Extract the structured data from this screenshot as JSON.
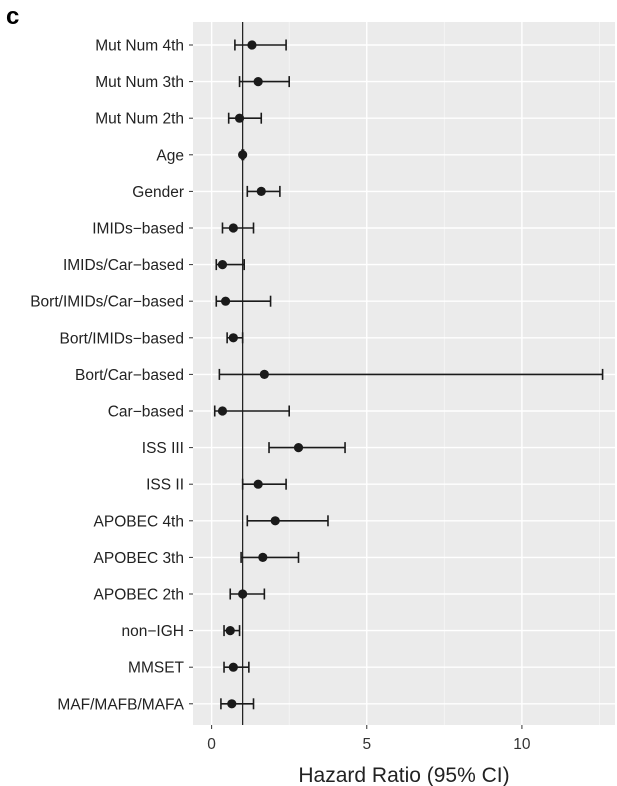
{
  "panel_label": "c",
  "chart_data": {
    "type": "forest",
    "title": "",
    "xlabel": "Hazard Ratio (95% CI)",
    "ylabel": "",
    "xlim": [
      -0.6,
      13.0
    ],
    "xticks": [
      0,
      5,
      10
    ],
    "reference_line": 1,
    "grid": true,
    "rows": [
      {
        "label": "Mut Num 4th",
        "hr": 1.3,
        "lo": 0.75,
        "hi": 2.4
      },
      {
        "label": "Mut Num 3th",
        "hr": 1.5,
        "lo": 0.9,
        "hi": 2.5
      },
      {
        "label": "Mut Num 2th",
        "hr": 0.9,
        "lo": 0.55,
        "hi": 1.6
      },
      {
        "label": "Age",
        "hr": 1.0,
        "lo": 0.98,
        "hi": 1.03
      },
      {
        "label": "Gender",
        "hr": 1.6,
        "lo": 1.15,
        "hi": 2.2
      },
      {
        "label": "IMIDs−based",
        "hr": 0.7,
        "lo": 0.35,
        "hi": 1.35
      },
      {
        "label": "IMIDs/Car−based",
        "hr": 0.35,
        "lo": 0.15,
        "hi": 1.05
      },
      {
        "label": "Bort/IMIDs/Car−based",
        "hr": 0.45,
        "lo": 0.15,
        "hi": 1.9
      },
      {
        "label": "Bort/IMIDs−based",
        "hr": 0.7,
        "lo": 0.5,
        "hi": 1.0
      },
      {
        "label": "Bort/Car−based",
        "hr": 1.7,
        "lo": 0.25,
        "hi": 12.6
      },
      {
        "label": "Car−based",
        "hr": 0.35,
        "lo": 0.1,
        "hi": 2.5
      },
      {
        "label": "ISS III",
        "hr": 2.8,
        "lo": 1.85,
        "hi": 4.3
      },
      {
        "label": "ISS II",
        "hr": 1.5,
        "lo": 1.0,
        "hi": 2.4
      },
      {
        "label": "APOBEC 4th",
        "hr": 2.05,
        "lo": 1.15,
        "hi": 3.75
      },
      {
        "label": "APOBEC 3th",
        "hr": 1.65,
        "lo": 0.95,
        "hi": 2.8
      },
      {
        "label": "APOBEC 2th",
        "hr": 1.0,
        "lo": 0.6,
        "hi": 1.7
      },
      {
        "label": "non−IGH",
        "hr": 0.6,
        "lo": 0.4,
        "hi": 0.9
      },
      {
        "label": "MMSET",
        "hr": 0.7,
        "lo": 0.4,
        "hi": 1.2
      },
      {
        "label": "MAF/MAFB/MAFA",
        "hr": 0.65,
        "lo": 0.3,
        "hi": 1.35
      }
    ]
  }
}
